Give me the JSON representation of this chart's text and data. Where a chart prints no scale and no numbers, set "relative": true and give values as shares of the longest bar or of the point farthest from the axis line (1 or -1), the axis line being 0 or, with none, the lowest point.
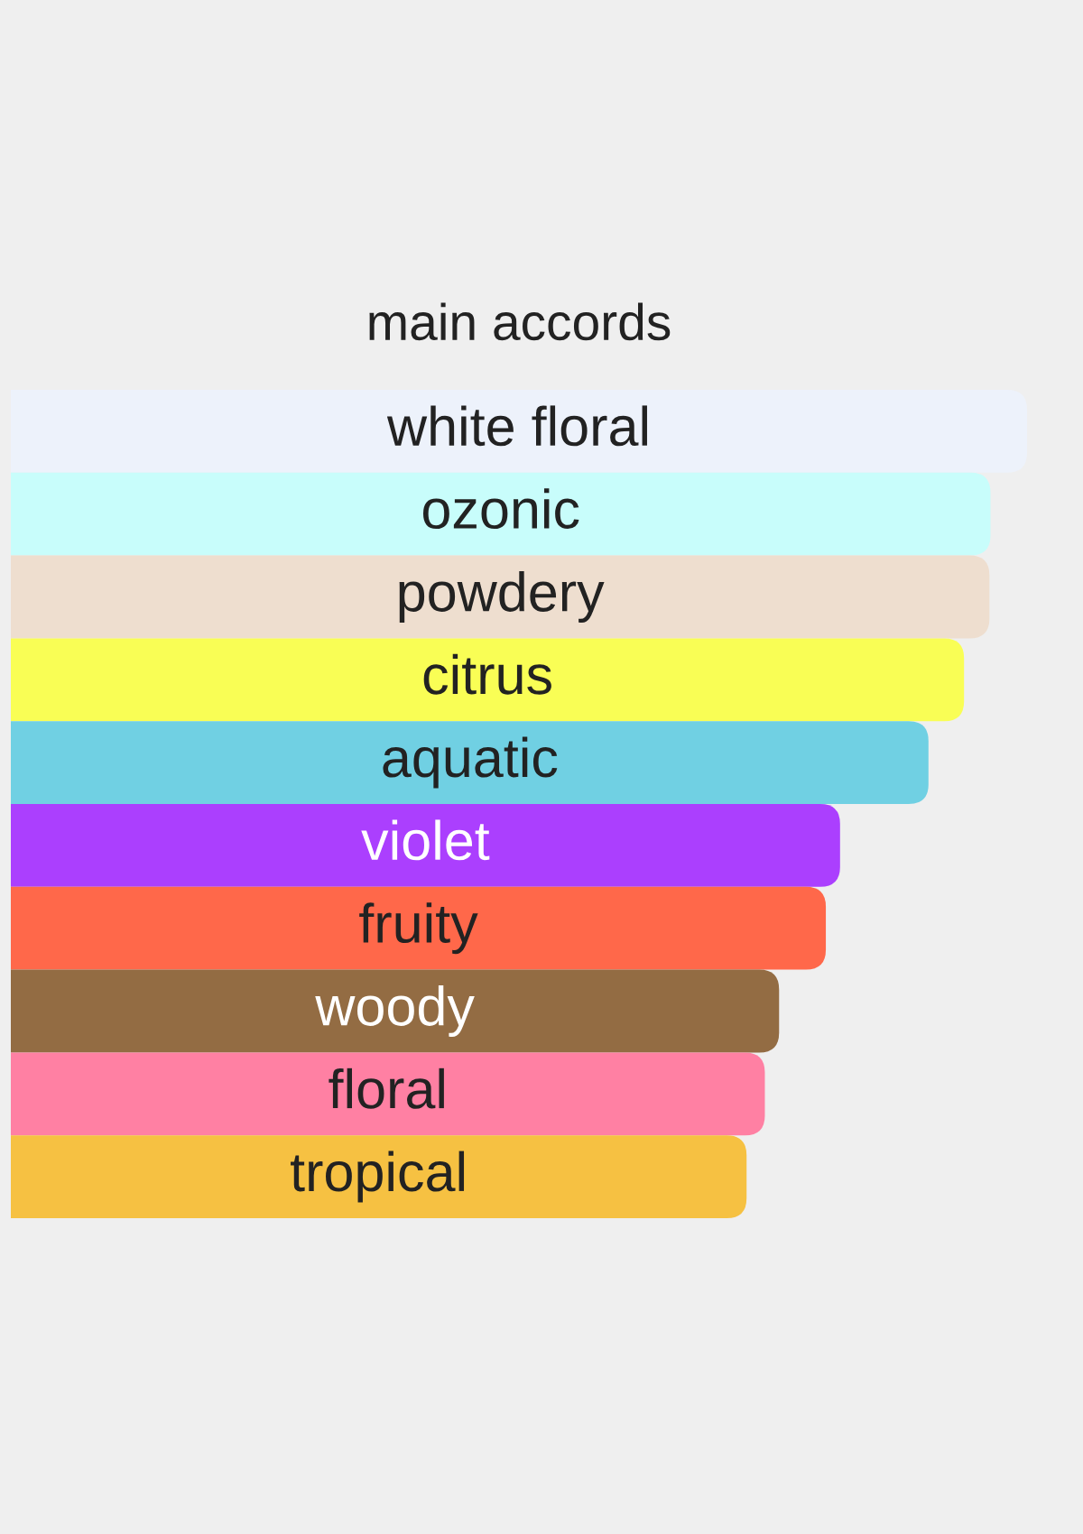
{
  "chart_data": {
    "type": "bar",
    "orientation": "horizontal",
    "relative": true,
    "title": "main accords",
    "categories": [
      "white floral",
      "ozonic",
      "powdery",
      "citrus",
      "aquatic",
      "violet",
      "fruity",
      "woody",
      "floral",
      "tropical"
    ],
    "values": [
      1,
      0.964,
      0.963,
      0.938,
      0.903,
      0.816,
      0.802,
      0.756,
      0.742,
      0.724
    ],
    "colors": [
      "#edf2fb",
      "#c8fdfb",
      "#eedecf",
      "#f9fe55",
      "#70d0e3",
      "#ab3ffe",
      "#ff684a",
      "#936c43",
      "#ff80a3",
      "#f6c142"
    ]
  }
}
